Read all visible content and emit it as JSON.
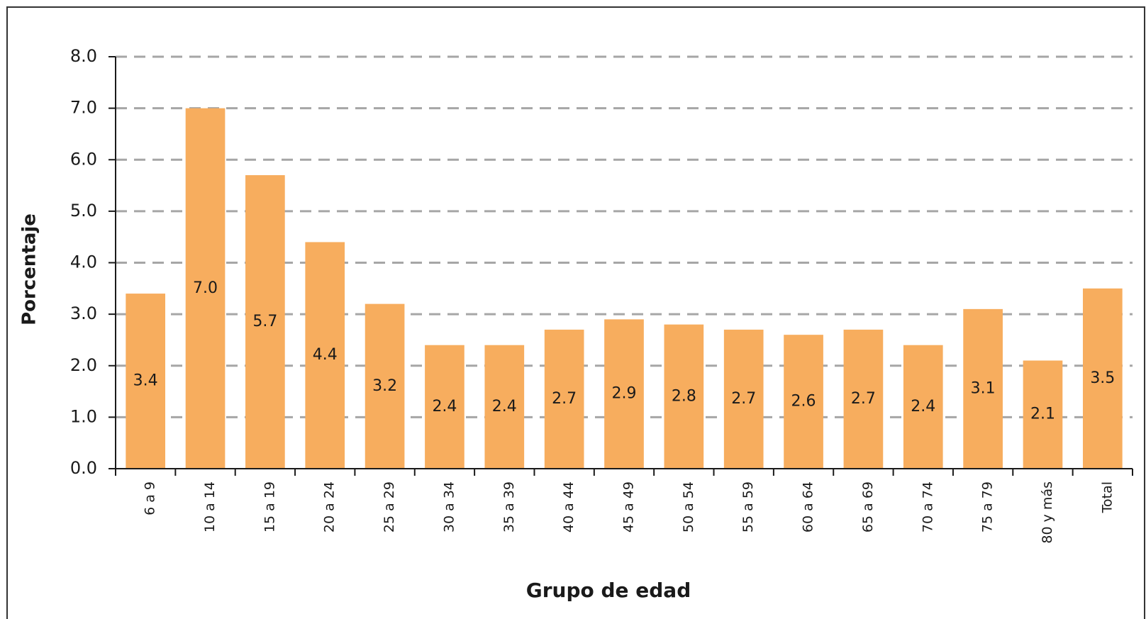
{
  "chart_data": {
    "type": "bar",
    "ylabel": "Porcentaje",
    "xlabel": "Grupo de edad",
    "categories": [
      "6 a 9",
      "10 a 14",
      "15 a 19",
      "20 a 24",
      "25 a 29",
      "30 a 34",
      "35 a 39",
      "40 a 44",
      "45 a 49",
      "50 a 54",
      "55 a 59",
      "60 a 64",
      "65 a 69",
      "70 a 74",
      "75 a 79",
      "80 y más",
      "Total"
    ],
    "values": [
      3.4,
      7.0,
      5.7,
      4.4,
      3.2,
      2.4,
      2.4,
      2.7,
      2.9,
      2.8,
      2.7,
      2.6,
      2.7,
      2.4,
      3.1,
      2.1,
      3.5
    ],
    "value_labels": [
      "3.4",
      "7.0",
      "5.7",
      "4.4",
      "3.2",
      "2.4",
      "2.4",
      "2.7",
      "2.9",
      "2.8",
      "2.7",
      "2.6",
      "2.7",
      "2.4",
      "3.1",
      "2.1",
      "3.5"
    ],
    "color": "#f7ad5e",
    "ylim": [
      0,
      8
    ],
    "yticks": [
      {
        "value": 0,
        "label": "0.0"
      },
      {
        "value": 1,
        "label": "1.0"
      },
      {
        "value": 2,
        "label": "2.0"
      },
      {
        "value": 3,
        "label": "3.0"
      },
      {
        "value": 4,
        "label": "4.0"
      },
      {
        "value": 5,
        "label": "5.0"
      },
      {
        "value": 6,
        "label": "6.0"
      },
      {
        "value": 7,
        "label": "7.0"
      },
      {
        "value": 8,
        "label": "8.0"
      }
    ],
    "grid": true
  }
}
